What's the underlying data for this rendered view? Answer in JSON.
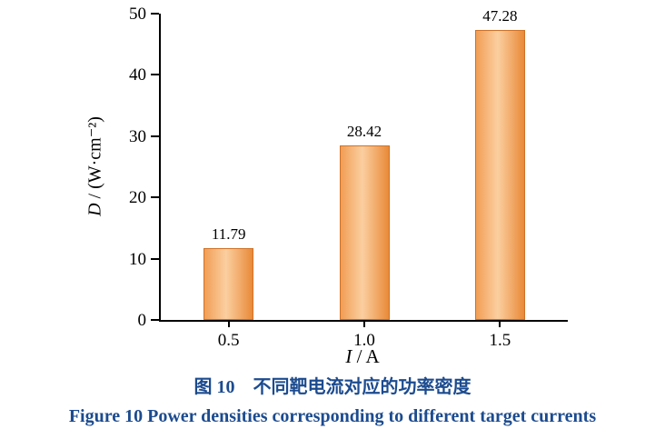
{
  "chart_data": {
    "type": "bar",
    "title": "",
    "categories": [
      "0.5",
      "1.0",
      "1.5"
    ],
    "values": [
      11.79,
      28.42,
      47.28
    ],
    "data_labels": [
      "11.79",
      "28.42",
      "47.28"
    ],
    "xlabel_var": "I",
    "xlabel_rest": " / A",
    "ylabel_var": "D",
    "ylabel_rest": " / (W·cm⁻²)",
    "ylim": [
      0,
      50
    ],
    "yticks": [
      0,
      10,
      20,
      30,
      40,
      50
    ],
    "grid": false,
    "legend": "none",
    "bar_gradient": [
      "#f19e55",
      "#fbcfa0",
      "#e88a38"
    ],
    "bar_border": "#cf7128",
    "axis_color": "#000000",
    "text_color": "#000000"
  },
  "caption": {
    "line1_zh": "图 10　不同靶电流对应的功率密度",
    "line2_en": "Figure 10 Power densities corresponding to different target currents",
    "color": "#1c4b8f"
  }
}
